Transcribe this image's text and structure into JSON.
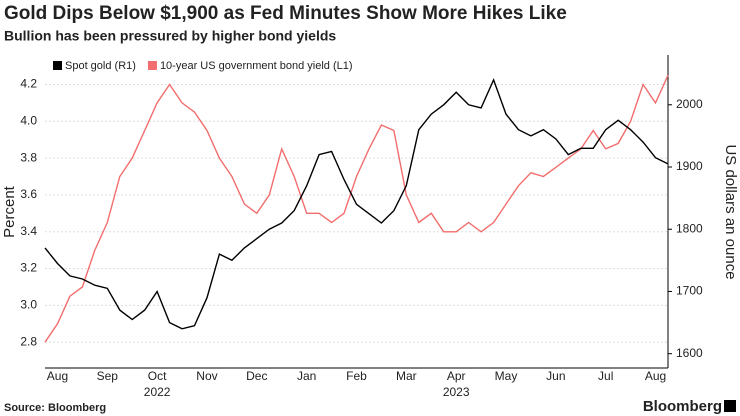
{
  "chart_data": {
    "type": "line",
    "title": "Gold Dips Below $1,900 as Fed Minutes Show More Hikes Like",
    "subtitle": "Bullion has been pressured by higher bond yields",
    "source": "Source: Bloomberg",
    "brand": "Bloomberg",
    "ylabel": "Percent",
    "y2label": "US dollars an ounce",
    "categories": [
      null,
      "Aug",
      null,
      null,
      null,
      "Sep",
      null,
      null,
      null,
      "Oct",
      null,
      null,
      null,
      "Nov",
      null,
      null,
      null,
      "Dec",
      null,
      null,
      null,
      "Jan",
      null,
      null,
      null,
      "Feb",
      null,
      null,
      null,
      "Mar",
      null,
      null,
      null,
      "Apr",
      null,
      null,
      null,
      "May",
      null,
      null,
      null,
      "Jun",
      null,
      null,
      null,
      "Jul",
      null,
      null,
      null,
      "Aug",
      null
    ],
    "years": [
      null,
      null,
      null,
      null,
      null,
      null,
      null,
      null,
      null,
      "2022",
      null,
      null,
      null,
      null,
      null,
      null,
      null,
      null,
      null,
      null,
      null,
      null,
      null,
      null,
      null,
      null,
      null,
      null,
      null,
      null,
      null,
      null,
      null,
      "2023",
      null,
      null,
      null,
      null,
      null,
      null,
      null,
      null,
      null,
      null,
      null,
      null,
      null,
      null,
      null,
      null,
      null
    ],
    "ylim": [
      2.66,
      4.36
    ],
    "yticks": [
      2.8,
      {
        "value": 3.0,
        "label": "3.0"
      },
      3.2,
      3.4,
      3.6,
      3.8,
      {
        "value": 4.0,
        "label": "4.0"
      },
      4.2
    ],
    "y2lim": [
      1577,
      2080
    ],
    "y2ticks": [
      1600,
      1700,
      1800,
      1900,
      2000
    ],
    "grid": true,
    "series": [
      {
        "name": "Spot gold (R1)",
        "color": "#000000",
        "axis": "y2",
        "values": [
          1770,
          1745,
          1725,
          1720,
          1710,
          1705,
          1670,
          1655,
          1670,
          1700,
          1650,
          1640,
          1645,
          1690,
          1760,
          1750,
          1770,
          1785,
          1800,
          1810,
          1830,
          1870,
          1920,
          1925,
          1880,
          1840,
          1825,
          1810,
          1830,
          1870,
          1960,
          1985,
          2000,
          2020,
          2000,
          1995,
          2040,
          1985,
          1960,
          1950,
          1960,
          1945,
          1920,
          1930,
          1930,
          1960,
          1975,
          1960,
          1940,
          1915,
          1905
        ]
      },
      {
        "name": "10-year US government bond yield (L1)",
        "color": "#f26d6d",
        "values": [
          2.8,
          2.9,
          3.05,
          3.1,
          3.3,
          3.45,
          3.7,
          3.8,
          3.95,
          4.1,
          4.2,
          4.1,
          4.05,
          3.95,
          3.8,
          3.7,
          3.55,
          3.5,
          3.6,
          3.85,
          3.7,
          3.5,
          3.5,
          3.45,
          3.5,
          3.7,
          3.85,
          3.98,
          3.95,
          3.6,
          3.45,
          3.5,
          3.4,
          3.4,
          3.45,
          3.4,
          3.45,
          3.55,
          3.65,
          3.72,
          3.7,
          3.75,
          3.8,
          3.85,
          3.95,
          3.85,
          3.88,
          4.0,
          4.2,
          4.1,
          4.25
        ]
      }
    ]
  }
}
